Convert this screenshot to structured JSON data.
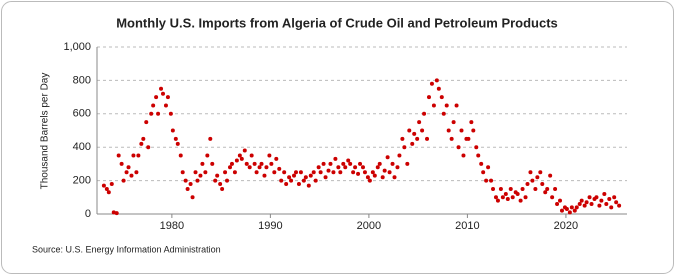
{
  "chart_data": {
    "type": "scatter",
    "title": "Monthly U.S. Imports from Algeria of Crude Oil and Petroleum Products",
    "y_label": "Thousand Barrels per Day",
    "source": "Source: U.S. Energy Information Administration",
    "xlim": [
      1972.4,
      2026.2
    ],
    "xticks": [
      1980,
      1990,
      2000,
      2010,
      2020
    ],
    "ylim": [
      0,
      1000
    ],
    "yticks": [
      0,
      200,
      400,
      600,
      800,
      {
        "value": 1000,
        "label": "1,000"
      }
    ],
    "grid": true,
    "color": "#cc0000",
    "x": [
      1973.1,
      1973.4,
      1973.6,
      1973.9,
      1974.1,
      1974.4,
      1974.6,
      1974.9,
      1975.1,
      1975.4,
      1975.6,
      1975.9,
      1976.1,
      1976.4,
      1976.6,
      1976.9,
      1977.1,
      1977.4,
      1977.6,
      1977.9,
      1978.1,
      1978.4,
      1978.6,
      1978.9,
      1979.1,
      1979.4,
      1979.6,
      1979.9,
      1980.1,
      1980.4,
      1980.6,
      1980.9,
      1981.1,
      1981.4,
      1981.6,
      1981.9,
      1982.1,
      1982.4,
      1982.6,
      1982.9,
      1983.1,
      1983.4,
      1983.6,
      1983.9,
      1984.1,
      1984.4,
      1984.6,
      1984.9,
      1985.1,
      1985.4,
      1985.6,
      1985.9,
      1986.1,
      1986.4,
      1986.6,
      1986.9,
      1987.1,
      1987.4,
      1987.6,
      1987.9,
      1988.1,
      1988.4,
      1988.6,
      1988.9,
      1989.1,
      1989.4,
      1989.6,
      1989.9,
      1990.1,
      1990.4,
      1990.6,
      1990.9,
      1991.1,
      1991.4,
      1991.6,
      1991.9,
      1992.1,
      1992.4,
      1992.6,
      1992.9,
      1993.1,
      1993.4,
      1993.6,
      1993.9,
      1994.1,
      1994.4,
      1994.6,
      1994.9,
      1995.1,
      1995.4,
      1995.6,
      1995.9,
      1996.1,
      1996.4,
      1996.6,
      1996.9,
      1997.1,
      1997.4,
      1997.6,
      1997.9,
      1998.1,
      1998.4,
      1998.6,
      1998.9,
      1999.1,
      1999.4,
      1999.6,
      1999.9,
      2000.1,
      2000.4,
      2000.6,
      2000.9,
      2001.1,
      2001.4,
      2001.6,
      2001.9,
      2002.1,
      2002.4,
      2002.6,
      2002.9,
      2003.1,
      2003.4,
      2003.6,
      2003.9,
      2004.1,
      2004.4,
      2004.6,
      2004.9,
      2005.1,
      2005.4,
      2005.6,
      2005.9,
      2006.1,
      2006.4,
      2006.6,
      2006.9,
      2007.1,
      2007.4,
      2007.6,
      2007.9,
      2008.1,
      2008.4,
      2008.6,
      2008.9,
      2009.1,
      2009.4,
      2009.6,
      2009.9,
      2010.1,
      2010.4,
      2010.6,
      2010.9,
      2011.1,
      2011.4,
      2011.6,
      2011.9,
      2012.1,
      2012.4,
      2012.6,
      2012.9,
      2013.1,
      2013.4,
      2013.6,
      2013.9,
      2014.1,
      2014.4,
      2014.6,
      2014.9,
      2015.1,
      2015.4,
      2015.6,
      2015.9,
      2016.1,
      2016.4,
      2016.6,
      2016.9,
      2017.1,
      2017.4,
      2017.6,
      2017.9,
      2018.1,
      2018.4,
      2018.6,
      2018.9,
      2019.1,
      2019.4,
      2019.6,
      2019.9,
      2020.1,
      2020.4,
      2020.6,
      2020.9,
      2021.1,
      2021.4,
      2021.6,
      2021.9,
      2022.1,
      2022.4,
      2022.6,
      2022.9,
      2023.1,
      2023.4,
      2023.6,
      2023.9,
      2024.1,
      2024.4,
      2024.6,
      2024.9,
      2025.1,
      2025.4
    ],
    "values": [
      170,
      150,
      130,
      180,
      10,
      5,
      350,
      300,
      200,
      250,
      280,
      230,
      350,
      250,
      350,
      420,
      450,
      550,
      400,
      600,
      650,
      700,
      600,
      750,
      720,
      650,
      700,
      600,
      500,
      450,
      420,
      350,
      250,
      200,
      150,
      180,
      100,
      250,
      200,
      230,
      300,
      250,
      350,
      450,
      300,
      200,
      230,
      180,
      150,
      250,
      200,
      280,
      300,
      250,
      320,
      350,
      330,
      380,
      300,
      280,
      350,
      300,
      250,
      280,
      300,
      230,
      280,
      350,
      300,
      250,
      330,
      270,
      200,
      250,
      180,
      220,
      200,
      230,
      250,
      180,
      250,
      200,
      220,
      170,
      230,
      250,
      200,
      280,
      250,
      300,
      220,
      260,
      300,
      250,
      330,
      280,
      250,
      300,
      280,
      320,
      300,
      250,
      280,
      240,
      300,
      280,
      250,
      220,
      200,
      250,
      230,
      280,
      300,
      220,
      260,
      340,
      250,
      300,
      220,
      280,
      350,
      450,
      400,
      300,
      500,
      420,
      480,
      450,
      550,
      500,
      600,
      450,
      700,
      780,
      650,
      800,
      750,
      700,
      600,
      650,
      500,
      450,
      550,
      650,
      400,
      500,
      350,
      450,
      450,
      550,
      500,
      400,
      350,
      300,
      250,
      200,
      280,
      200,
      150,
      100,
      80,
      150,
      100,
      120,
      90,
      150,
      100,
      130,
      120,
      80,
      150,
      100,
      180,
      250,
      200,
      150,
      220,
      250,
      180,
      130,
      150,
      230,
      100,
      150,
      60,
      80,
      20,
      40,
      30,
      10,
      40,
      20,
      40,
      60,
      80,
      50,
      70,
      100,
      60,
      90,
      100,
      50,
      80,
      120,
      60,
      90,
      40,
      100,
      70,
      50
    ]
  }
}
